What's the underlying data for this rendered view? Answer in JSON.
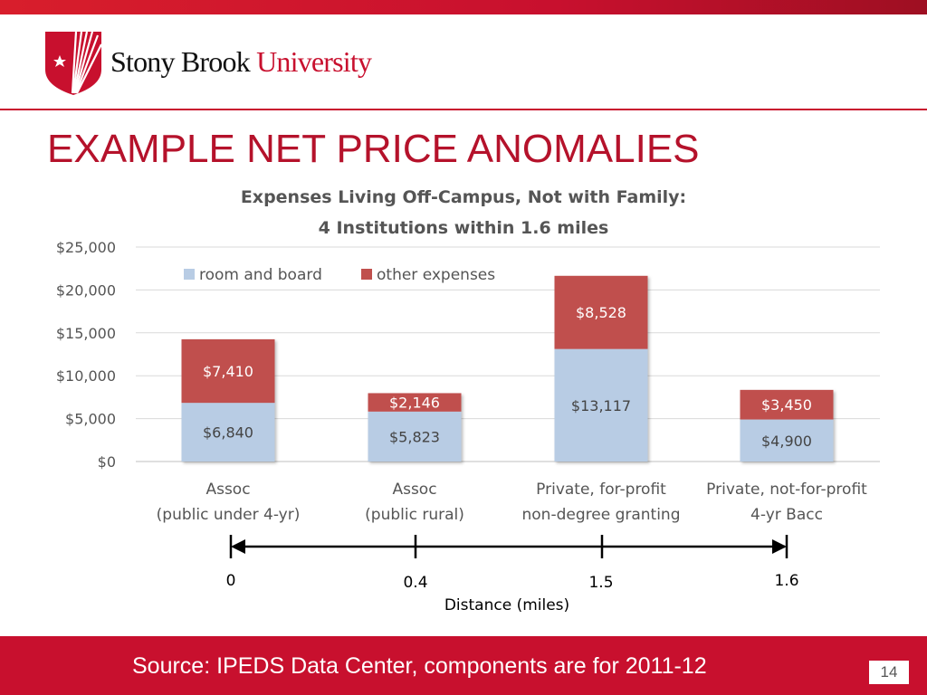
{
  "header": {
    "brand_primary": "Stony Brook",
    "brand_secondary": "University",
    "brand_color": "#c8102e"
  },
  "slide": {
    "title": "EXAMPLE NET PRICE ANOMALIES",
    "source": "Source: IPEDS Data Center, components are for 2011-12",
    "page_number": "14"
  },
  "chart_data": {
    "type": "bar",
    "stacked": true,
    "title_lines": [
      "Expenses Living Off-Campus, Not with Family:",
      "4 Institutions within 1.6 miles"
    ],
    "categories": [
      [
        "Assoc",
        "(public under 4-yr)"
      ],
      [
        "Assoc",
        "(public rural)"
      ],
      [
        "Private, for-profit",
        "non-degree granting"
      ],
      [
        "Private, not-for-profit",
        "4-yr Bacc"
      ]
    ],
    "series": [
      {
        "name": "room and board",
        "color": "#b8cce4",
        "values": [
          6840,
          5823,
          13117,
          4900
        ],
        "labels": [
          "$6,840",
          "$5,823",
          "$13,117",
          "$4,900"
        ]
      },
      {
        "name": "other expenses",
        "color": "#c0504d",
        "values": [
          7410,
          2146,
          8528,
          3450
        ],
        "labels": [
          "$7,410",
          "$2,146",
          "$8,528",
          "$3,450"
        ]
      }
    ],
    "ylim": [
      0,
      25000
    ],
    "yticks": [
      0,
      5000,
      10000,
      15000,
      20000,
      25000
    ],
    "ytick_labels": [
      "$0",
      "$5,000",
      "$10,000",
      "$15,000",
      "$20,000",
      "$25,000"
    ],
    "grid": true,
    "legend_position": "top-left"
  },
  "distance_axis": {
    "label": "Distance (miles)",
    "points": [
      "0",
      "0.4",
      "1.5",
      "1.6"
    ]
  }
}
